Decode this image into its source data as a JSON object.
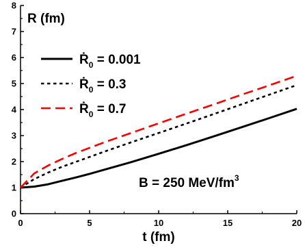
{
  "chart_data": {
    "type": "line",
    "xlabel": "t (fm)",
    "ylabel": "R (fm)",
    "xlim": [
      0,
      20
    ],
    "ylim": [
      0,
      8
    ],
    "x_ticks": [
      0,
      5,
      10,
      15,
      20
    ],
    "y_ticks": [
      0,
      1,
      2,
      3,
      4,
      5,
      6,
      7,
      8
    ],
    "grid": false,
    "legend_position": "top-left",
    "annotation": {
      "text": "B = 250 MeV/fm",
      "superscript": "3"
    },
    "series": [
      {
        "name": "Ṙ0 = 0.001",
        "label_main": "Ṙ",
        "label_sub": "0",
        "label_rest": " = 0.001",
        "color": "#000000",
        "dash": "solid",
        "x": [
          0,
          1,
          2,
          3,
          4,
          5,
          6,
          8,
          10,
          12,
          14,
          16,
          18,
          20
        ],
        "y": [
          1.0,
          1.04,
          1.13,
          1.26,
          1.39,
          1.53,
          1.68,
          1.98,
          2.3,
          2.63,
          2.97,
          3.32,
          3.67,
          4.03
        ]
      },
      {
        "name": "Ṙ0 = 0.3",
        "label_main": "Ṙ",
        "label_sub": "0",
        "label_rest": " = 0.3",
        "color": "#000000",
        "dash": "short-dash",
        "x": [
          0,
          1,
          2,
          3,
          4,
          5,
          6,
          8,
          10,
          12,
          14,
          16,
          18,
          20
        ],
        "y": [
          1.0,
          1.33,
          1.58,
          1.8,
          1.99,
          2.18,
          2.37,
          2.74,
          3.1,
          3.46,
          3.83,
          4.2,
          4.57,
          4.94
        ]
      },
      {
        "name": "Ṙ0 = 0.7",
        "label_main": "Ṙ",
        "label_sub": "0",
        "label_rest": " = 0.7",
        "color": "#ff0000",
        "dash": "long-dash",
        "x": [
          0,
          1,
          2,
          3,
          4,
          5,
          6,
          8,
          10,
          12,
          14,
          16,
          18,
          20
        ],
        "y": [
          1.0,
          1.55,
          1.85,
          2.1,
          2.33,
          2.53,
          2.73,
          3.1,
          3.47,
          3.84,
          4.2,
          4.57,
          4.93,
          5.3
        ]
      }
    ]
  }
}
